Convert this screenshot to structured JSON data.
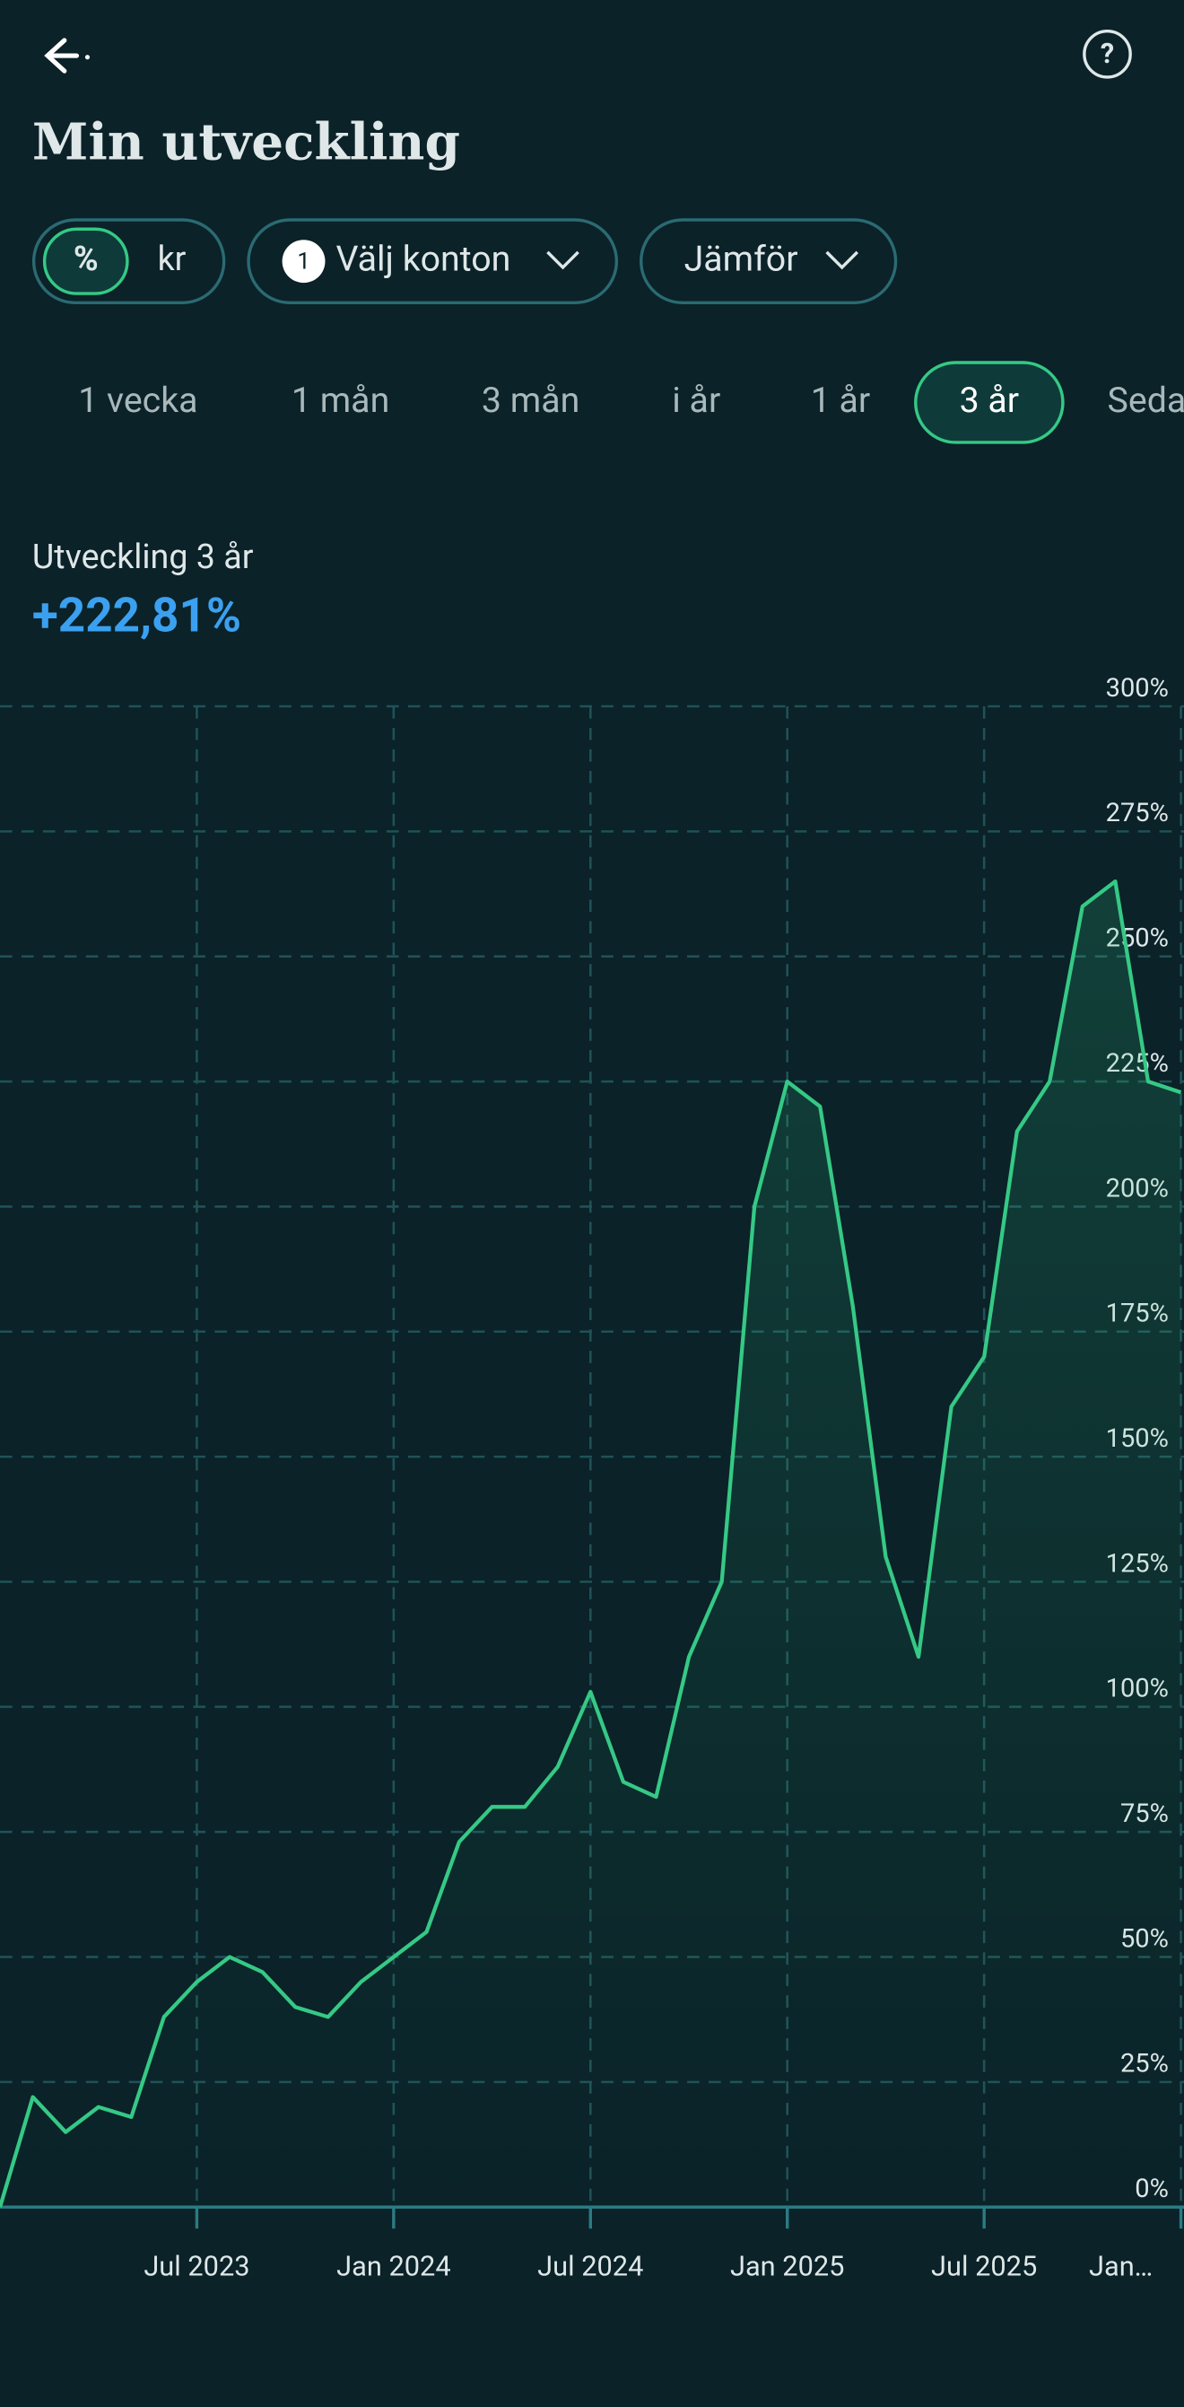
{
  "header": {
    "title": "Min utveckling"
  },
  "toggle": {
    "options": [
      "%",
      "kr"
    ]
  },
  "filters": {
    "accounts_count": 1,
    "accounts": "Välj konton",
    "compare": "Jämför"
  },
  "periods": [
    "1 vecka",
    "1 mån",
    "3 mån",
    "i år",
    "1 år",
    "3 år",
    "Seda"
  ],
  "summary": {
    "label": "Utveckling 3 år",
    "value": "+222,81%"
  },
  "chart_data": {
    "type": "line",
    "color": "#35c985",
    "x": [
      "2023-01",
      "2023-02",
      "2023-03",
      "2023-04",
      "2023-05",
      "2023-06",
      "2023-07",
      "2023-08",
      "2023-09",
      "2023-10",
      "2023-11",
      "2023-12",
      "2024-01",
      "2024-02",
      "2024-03",
      "2024-04",
      "2024-05",
      "2024-06",
      "2024-07",
      "2024-08",
      "2024-09",
      "2024-10",
      "2024-11",
      "2024-12",
      "2025-01",
      "2025-02",
      "2025-03",
      "2025-04",
      "2025-05",
      "2025-06",
      "2025-07",
      "2025-08",
      "2025-09",
      "2025-10",
      "2025-11",
      "2025-12",
      "2026-01"
    ],
    "values": [
      0,
      22,
      15,
      20,
      18,
      38,
      45,
      50,
      47,
      40,
      38,
      45,
      50,
      55,
      73,
      80,
      80,
      88,
      103,
      85,
      82,
      110,
      125,
      200,
      225,
      220,
      180,
      130,
      110,
      160,
      170,
      215,
      225,
      260,
      265,
      225,
      222.81
    ],
    "xlim": [
      "2023-01",
      "2026-01"
    ],
    "xticks": [
      {
        "value": "2023-07",
        "label": "Jul 2023"
      },
      {
        "value": "2024-01",
        "label": "Jan 2024"
      },
      {
        "value": "2024-07",
        "label": "Jul 2024"
      },
      {
        "value": "2025-01",
        "label": "Jan 2025"
      },
      {
        "value": "2025-07",
        "label": "Jul 2025"
      },
      {
        "value": "2026-01",
        "label": "Jan…"
      }
    ],
    "ylim": [
      0,
      300
    ],
    "yticks": [
      {
        "value": 0,
        "label": "0%"
      },
      {
        "value": 25,
        "label": "25%"
      },
      {
        "value": 50,
        "label": "50%"
      },
      {
        "value": 75,
        "label": "75%"
      },
      {
        "value": 100,
        "label": "100%"
      },
      {
        "value": 125,
        "label": "125%"
      },
      {
        "value": 150,
        "label": "150%"
      },
      {
        "value": 175,
        "label": "175%"
      },
      {
        "value": 200,
        "label": "200%"
      },
      {
        "value": 225,
        "label": "225%"
      },
      {
        "value": 250,
        "label": "250%"
      },
      {
        "value": 275,
        "label": "275%"
      },
      {
        "value": 300,
        "label": "300%"
      }
    ],
    "grid": true
  }
}
